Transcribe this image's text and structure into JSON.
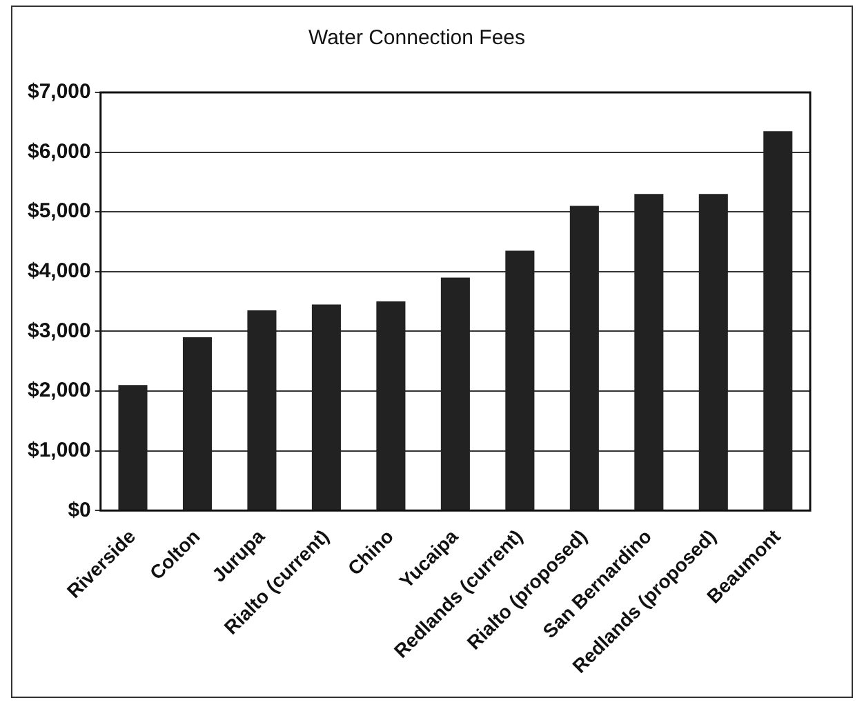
{
  "chart_data": {
    "type": "bar",
    "title": "Water Connection Fees",
    "categories": [
      "Riverside",
      "Colton",
      "Jurupa",
      "Rialto (current)",
      "Chino",
      "Yucaipa",
      "Redlands (current)",
      "Rialto (proposed)",
      "San Bernardino",
      "Redlands (proposed)",
      "Beaumont"
    ],
    "values": [
      2100,
      2900,
      3350,
      3450,
      3500,
      3900,
      4350,
      5100,
      5300,
      5300,
      6350
    ],
    "color": "#222222",
    "ylim": [
      0,
      7000
    ],
    "yticks": [
      {
        "value": 0,
        "label": "$0"
      },
      {
        "value": 1000,
        "label": "$1,000"
      },
      {
        "value": 2000,
        "label": "$2,000"
      },
      {
        "value": 3000,
        "label": "$3,000"
      },
      {
        "value": 4000,
        "label": "$4,000"
      },
      {
        "value": 5000,
        "label": "$5,000"
      },
      {
        "value": 6000,
        "label": "$6,000"
      },
      {
        "value": 7000,
        "label": "$7,000"
      }
    ],
    "grid": "y"
  }
}
